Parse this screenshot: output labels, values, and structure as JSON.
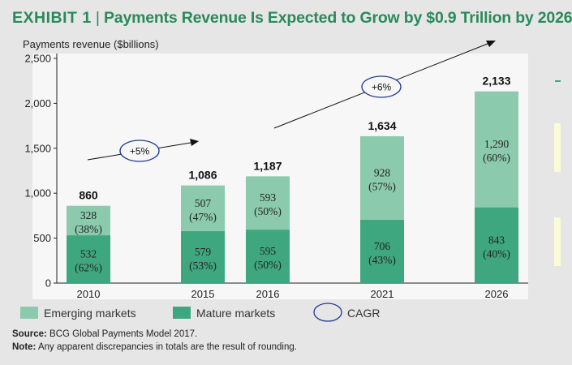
{
  "header": {
    "exhibit": "EXHIBIT 1",
    "separator": "|",
    "title": "Payments Revenue Is Expected to Grow by $0.9 Trillion by 2026"
  },
  "colors": {
    "emerging": "#8ccaad",
    "mature": "#3fa77f",
    "title": "#2a8a5a",
    "background": "#e6e6e6",
    "panel": "#f7f7f7"
  },
  "chart_data": {
    "type": "bar",
    "stacked": true,
    "ylabel": "Payments revenue ($billions)",
    "ylim": [
      0,
      2500
    ],
    "yticks": [
      0,
      500,
      1000,
      1500,
      2000,
      2500
    ],
    "ytick_labels": [
      "0",
      "500",
      "1,000",
      "1,500",
      "2,000",
      "2,500"
    ],
    "categories": [
      "2010",
      "2015",
      "2016",
      "2021",
      "2026"
    ],
    "totals": [
      "860",
      "1,086",
      "1,187",
      "1,634",
      "2,133"
    ],
    "series": [
      {
        "name": "Mature markets",
        "values": [
          532,
          579,
          595,
          706,
          843
        ],
        "labels": [
          "532",
          "579",
          "595",
          "706",
          "843"
        ],
        "shares": [
          "(62%)",
          "(53%)",
          "(50%)",
          "(43%)",
          "(40%)"
        ]
      },
      {
        "name": "Emerging markets",
        "values": [
          328,
          507,
          593,
          928,
          1290
        ],
        "labels": [
          "328",
          "507",
          "593",
          "928",
          "1,290"
        ],
        "shares": [
          "(38%)",
          "(47%)",
          "(50%)",
          "(57%)",
          "(60%)"
        ]
      }
    ],
    "cagr": [
      {
        "label": "+5%",
        "from": "2010",
        "to": "2015"
      },
      {
        "label": "+6%",
        "from": "2016",
        "to": "2026"
      }
    ],
    "legend": {
      "emerging": "Emerging markets",
      "mature": "Mature markets",
      "cagr": "CAGR"
    },
    "legend_position": "bottom"
  },
  "footer": {
    "source_label": "Source:",
    "source_text": "BCG Global Payments Model 2017.",
    "note_label": "Note:",
    "note_text": "Any apparent discrepancies in totals are the result of rounding."
  }
}
